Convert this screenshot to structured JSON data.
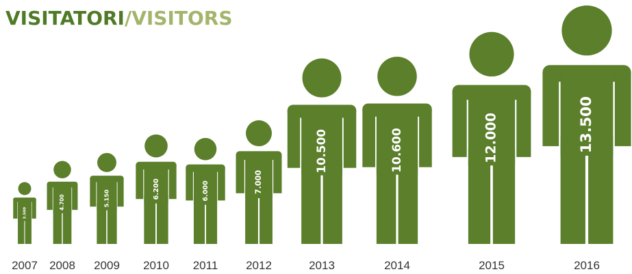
{
  "chart_data": {
    "type": "pictogram",
    "title_parts": [
      {
        "text": "VISITATORI",
        "color": "#4f7a26"
      },
      {
        "text": "/VISITORS",
        "color": "#a2b56b"
      }
    ],
    "categories": [
      "2007",
      "2008",
      "2009",
      "2010",
      "2011",
      "2012",
      "2013",
      "2014",
      "2015",
      "2016"
    ],
    "values": [
      3500,
      4700,
      5150,
      6200,
      6000,
      7000,
      10500,
      10600,
      12000,
      13500
    ],
    "value_labels": [
      "3.500",
      "4.700",
      "5.150",
      "6.200",
      "6.000",
      "7.000",
      "10.500",
      "10.600",
      "12.000",
      "13.500"
    ],
    "color": "#5b7f2b"
  }
}
